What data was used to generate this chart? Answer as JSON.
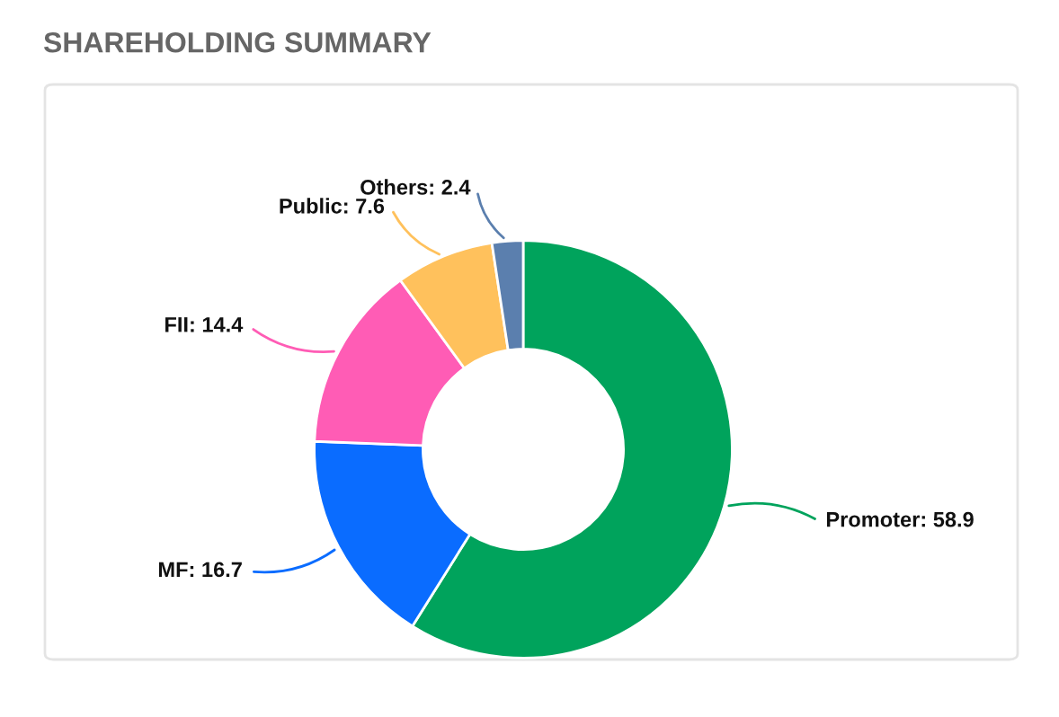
{
  "chart_data": {
    "type": "donut",
    "title": "SHAREHOLDING SUMMARY",
    "categories": [
      "Promoter",
      "MF",
      "FII",
      "Public",
      "Others"
    ],
    "values": [
      58.9,
      16.7,
      14.4,
      7.6,
      2.4
    ],
    "colors": [
      "#00a35c",
      "#0a6cff",
      "#ff5cb5",
      "#ffc15c",
      "#5b7fae"
    ],
    "value_labels": [
      ": 58.9",
      ": 16.7",
      ": 14.4",
      ": 7.6",
      ": 2.4"
    ],
    "legend": false
  }
}
